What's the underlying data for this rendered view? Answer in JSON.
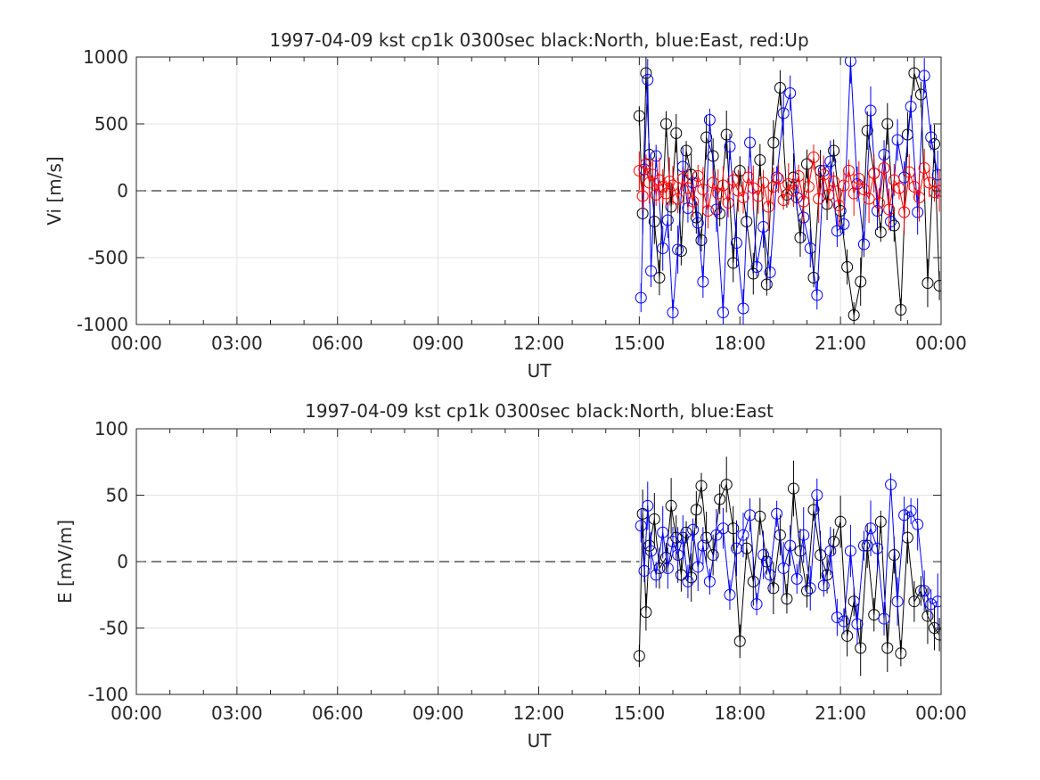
{
  "chart_data": [
    {
      "type": "line",
      "title": "1997-04-09 kst cp1k 0300sec black:North, blue:East, red:Up",
      "xlabel": "UT",
      "ylabel": "Vi [m/s]",
      "xlim": [
        0,
        24
      ],
      "ylim": [
        -1000,
        1000
      ],
      "xticks": [
        0,
        3,
        6,
        9,
        12,
        15,
        18,
        21,
        24
      ],
      "xtick_labels": [
        "00:00",
        "03:00",
        "06:00",
        "09:00",
        "12:00",
        "15:00",
        "18:00",
        "21:00",
        "00:00"
      ],
      "yticks": [
        1000,
        500,
        0,
        -500,
        -1000
      ],
      "ytick_labels": [
        "1000",
        "500",
        "0",
        "-500",
        "-1000"
      ],
      "grid": true,
      "reference_line": {
        "y": 0,
        "style": "dashed",
        "x_start": 0,
        "x_end": 15
      },
      "series": [
        {
          "name": "North",
          "color": "#000000",
          "x": [
            15.0,
            15.1,
            15.2,
            15.3,
            15.45,
            15.6,
            15.8,
            15.95,
            16.1,
            16.25,
            16.4,
            16.55,
            16.7,
            16.85,
            17.0,
            17.2,
            17.4,
            17.6,
            17.8,
            18.0,
            18.2,
            18.4,
            18.6,
            18.8,
            19.0,
            19.2,
            19.4,
            19.6,
            19.8,
            20.0,
            20.2,
            20.4,
            20.6,
            20.8,
            21.0,
            21.2,
            21.4,
            21.6,
            21.8,
            22.0,
            22.2,
            22.4,
            22.6,
            22.8,
            23.0,
            23.2,
            23.4,
            23.6,
            23.8,
            23.95
          ],
          "y": [
            560,
            -170,
            880,
            270,
            -230,
            -650,
            500,
            -120,
            430,
            -450,
            300,
            120,
            -200,
            -370,
            400,
            260,
            -170,
            420,
            -540,
            150,
            -230,
            -620,
            230,
            -700,
            360,
            770,
            -30,
            100,
            -350,
            200,
            -650,
            150,
            -100,
            300,
            -150,
            -570,
            -930,
            -680,
            450,
            130,
            -310,
            500,
            -260,
            -890,
            420,
            880,
            720,
            -690,
            350,
            -710
          ]
        },
        {
          "name": "East",
          "color": "#0000ff",
          "x": [
            15.05,
            15.15,
            15.25,
            15.35,
            15.5,
            15.7,
            15.85,
            16.0,
            16.15,
            16.3,
            16.45,
            16.6,
            16.75,
            16.9,
            17.1,
            17.3,
            17.5,
            17.7,
            17.9,
            18.1,
            18.3,
            18.5,
            18.7,
            18.9,
            19.1,
            19.3,
            19.5,
            19.7,
            19.9,
            20.1,
            20.3,
            20.5,
            20.7,
            20.9,
            21.1,
            21.3,
            21.5,
            21.7,
            21.9,
            22.1,
            22.3,
            22.5,
            22.7,
            22.9,
            23.1,
            23.3,
            23.5,
            23.7,
            23.9
          ],
          "y": [
            -800,
            160,
            830,
            -600,
            260,
            -430,
            -220,
            -910,
            -440,
            180,
            -130,
            60,
            -240,
            -680,
            530,
            -140,
            -910,
            330,
            -390,
            -880,
            360,
            -570,
            -270,
            -610,
            100,
            580,
            730,
            -50,
            -200,
            -430,
            -780,
            150,
            220,
            -300,
            -250,
            970,
            50,
            -400,
            600,
            -150,
            270,
            -230,
            380,
            100,
            630,
            -160,
            860,
            400,
            120
          ]
        },
        {
          "name": "Up",
          "color": "#ff0000",
          "x": [
            15.0,
            15.1,
            15.2,
            15.3,
            15.4,
            15.5,
            15.6,
            15.7,
            15.8,
            15.9,
            16.0,
            16.15,
            16.3,
            16.45,
            16.6,
            16.75,
            16.9,
            17.05,
            17.2,
            17.35,
            17.5,
            17.65,
            17.8,
            17.95,
            18.1,
            18.25,
            18.4,
            18.55,
            18.7,
            18.85,
            19.0,
            19.15,
            19.3,
            19.45,
            19.6,
            19.75,
            19.9,
            20.05,
            20.2,
            20.35,
            20.5,
            20.65,
            20.8,
            20.95,
            21.1,
            21.25,
            21.4,
            21.55,
            21.7,
            21.85,
            22.0,
            22.15,
            22.3,
            22.45,
            22.6,
            22.75,
            22.9,
            23.05,
            23.2,
            23.35,
            23.5,
            23.65,
            23.8,
            23.95
          ],
          "y": [
            150,
            -40,
            200,
            60,
            120,
            -30,
            80,
            30,
            -20,
            70,
            40,
            -60,
            90,
            20,
            -80,
            110,
            10,
            -150,
            60,
            -20,
            40,
            -90,
            80,
            0,
            -50,
            100,
            20,
            -40,
            60,
            -120,
            30,
            90,
            -70,
            50,
            0,
            110,
            -80,
            30,
            250,
            -60,
            120,
            -30,
            70,
            -110,
            40,
            150,
            -20,
            90,
            10,
            -60,
            130,
            -90,
            170,
            -140,
            80,
            20,
            -160,
            140,
            30,
            -50,
            170,
            60,
            -10,
            0
          ]
        }
      ]
    },
    {
      "type": "line",
      "title": "1997-04-09 kst cp1k 0300sec black:North, blue:East",
      "xlabel": "UT",
      "ylabel": "E [mV/m]",
      "xlim": [
        0,
        24
      ],
      "ylim": [
        -100,
        100
      ],
      "xticks": [
        0,
        3,
        6,
        9,
        12,
        15,
        18,
        21,
        24
      ],
      "xtick_labels": [
        "00:00",
        "03:00",
        "06:00",
        "09:00",
        "12:00",
        "15:00",
        "18:00",
        "21:00",
        "00:00"
      ],
      "yticks": [
        100,
        50,
        0,
        -50,
        -100
      ],
      "ytick_labels": [
        "100",
        "50",
        "0",
        "-50",
        "-100"
      ],
      "grid": true,
      "reference_line": {
        "y": 0,
        "style": "dashed",
        "x_start": 0,
        "x_end": 15
      },
      "series": [
        {
          "name": "North",
          "color": "#000000",
          "x": [
            15.0,
            15.1,
            15.2,
            15.3,
            15.45,
            15.6,
            15.8,
            15.95,
            16.1,
            16.25,
            16.4,
            16.55,
            16.7,
            16.85,
            17.0,
            17.2,
            17.4,
            17.6,
            17.8,
            18.0,
            18.2,
            18.4,
            18.6,
            18.8,
            19.0,
            19.2,
            19.4,
            19.6,
            19.8,
            20.0,
            20.2,
            20.4,
            20.6,
            20.8,
            21.0,
            21.2,
            21.4,
            21.6,
            21.8,
            22.0,
            22.2,
            22.4,
            22.6,
            22.8,
            23.0,
            23.2,
            23.4,
            23.6,
            23.8,
            23.95
          ],
          "y": [
            -71,
            36,
            -38,
            12,
            32,
            -5,
            3,
            42,
            18,
            -10,
            22,
            -12,
            39,
            57,
            18,
            5,
            47,
            58,
            25,
            -60,
            10,
            -15,
            34,
            0,
            -20,
            20,
            -28,
            55,
            8,
            -22,
            39,
            5,
            -10,
            15,
            30,
            -56,
            -30,
            -65,
            12,
            -40,
            30,
            -65,
            5,
            -69,
            18,
            -30,
            -22,
            -41,
            -50,
            -55
          ]
        },
        {
          "name": "East",
          "color": "#0000ff",
          "x": [
            15.05,
            15.15,
            15.25,
            15.35,
            15.5,
            15.7,
            15.85,
            16.0,
            16.15,
            16.3,
            16.45,
            16.6,
            16.75,
            16.9,
            17.1,
            17.3,
            17.5,
            17.7,
            17.9,
            18.1,
            18.3,
            18.5,
            18.7,
            18.9,
            19.1,
            19.3,
            19.5,
            19.7,
            19.9,
            20.1,
            20.3,
            20.5,
            20.7,
            20.9,
            21.1,
            21.3,
            21.5,
            21.7,
            21.9,
            22.1,
            22.3,
            22.5,
            22.7,
            22.9,
            23.1,
            23.3,
            23.5,
            23.7,
            23.9
          ],
          "y": [
            27,
            -7,
            42,
            8,
            -10,
            22,
            -5,
            15,
            5,
            18,
            -15,
            24,
            -4,
            12,
            -15,
            20,
            25,
            -25,
            10,
            20,
            35,
            -32,
            5,
            -10,
            36,
            -5,
            12,
            -13,
            20,
            -20,
            50,
            -18,
            8,
            -42,
            -45,
            8,
            -47,
            12,
            25,
            10,
            -43,
            58,
            -30,
            35,
            38,
            28,
            -22,
            -32,
            -30
          ]
        }
      ]
    }
  ]
}
